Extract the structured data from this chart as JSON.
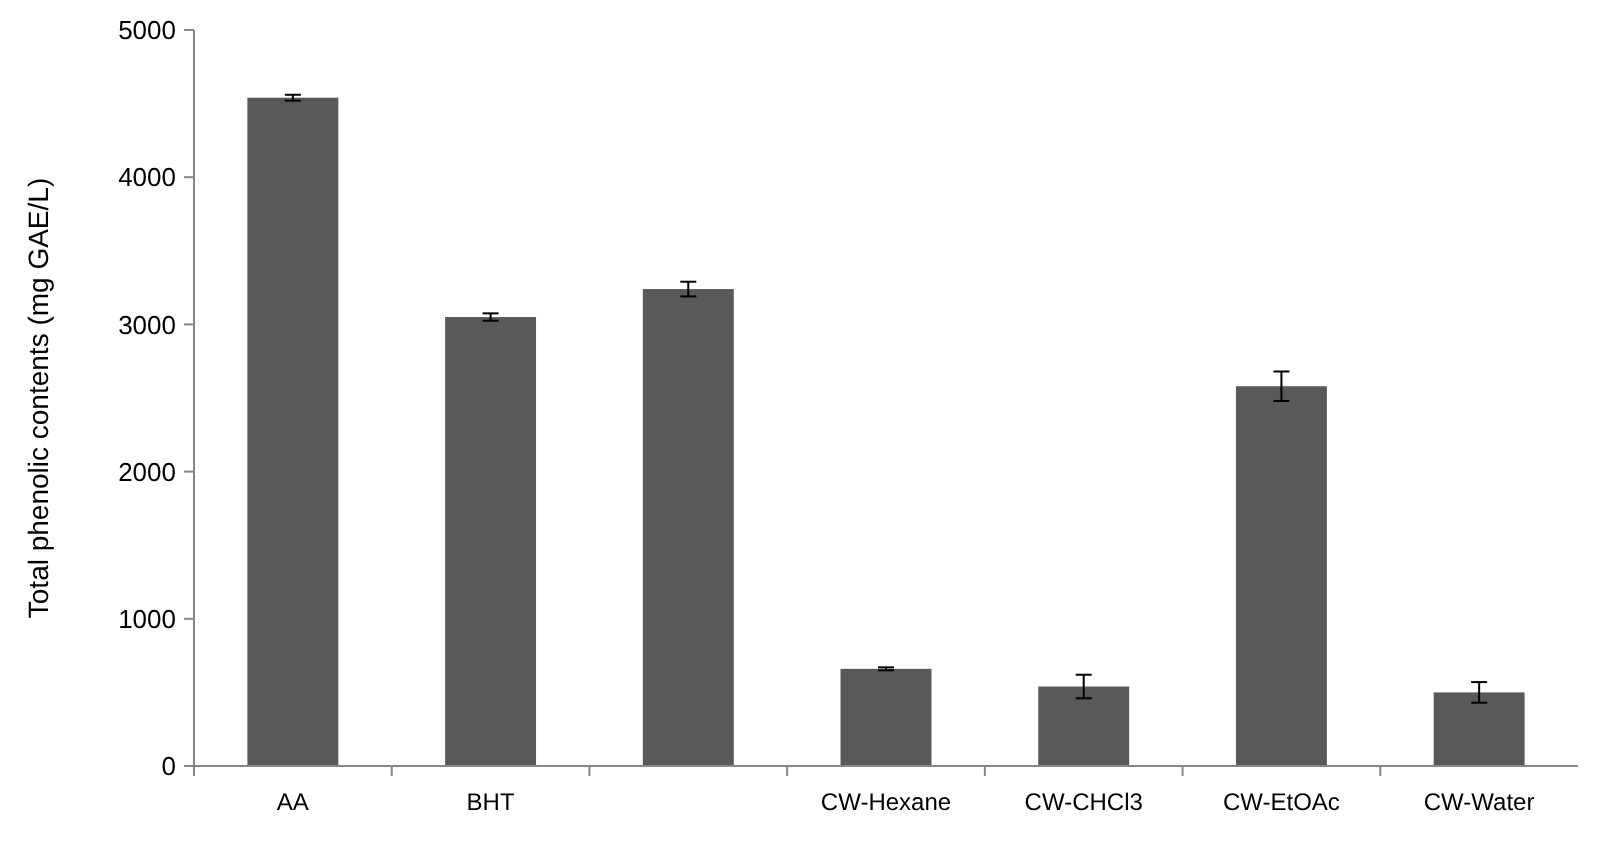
{
  "chart_data": {
    "type": "bar",
    "ylabel": "Total phenolic contents (mg GAE/L)",
    "categories": [
      "AA",
      "BHT",
      null,
      "CW-Hexane",
      "CW-CHCl3",
      "CW-EtOAc",
      "CW-Water"
    ],
    "values": [
      4540,
      3050,
      3240,
      660,
      540,
      2580,
      500
    ],
    "errors": [
      20,
      25,
      50,
      10,
      80,
      100,
      70
    ],
    "color": "#595959",
    "ylim": [
      0,
      5000
    ],
    "yticks": [
      0,
      1000,
      2000,
      3000,
      4000,
      5000
    ],
    "grid": false
  }
}
